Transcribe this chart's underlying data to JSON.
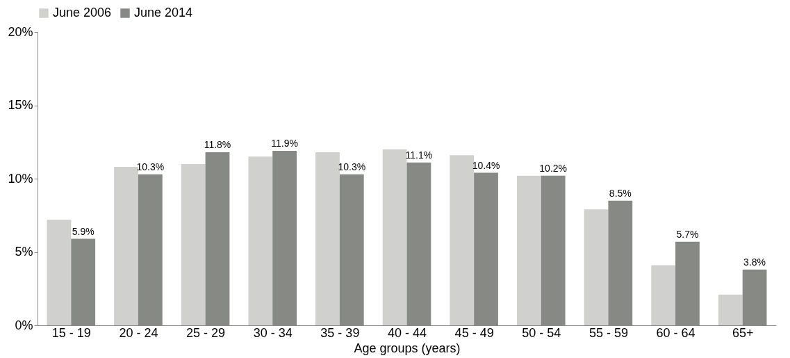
{
  "chart_data": {
    "type": "bar",
    "xlabel": "Age groups (years)",
    "categories": [
      "15 - 19",
      "20 - 24",
      "25 - 29",
      "30 - 34",
      "35 - 39",
      "40 - 44",
      "45 - 49",
      "50 - 54",
      "55 - 59",
      "60 - 64",
      "65+"
    ],
    "series": [
      {
        "name": "June 2006",
        "color": "#d0d1cf",
        "values": [
          7.2,
          10.8,
          11.0,
          11.5,
          11.8,
          12.0,
          11.6,
          10.2,
          7.9,
          4.1,
          2.1
        ]
      },
      {
        "name": "June 2014",
        "color": "#878985",
        "values": [
          5.9,
          10.3,
          11.8,
          11.9,
          10.3,
          11.1,
          10.4,
          10.2,
          8.5,
          5.7,
          3.8
        ],
        "value_labels": [
          "5.9%",
          "10.3%",
          "11.8%",
          "11.9%",
          "10.3%",
          "11.1%",
          "10.4%",
          "10.2%",
          "8.5%",
          "5.7%",
          "3.8%"
        ]
      }
    ],
    "ylim": [
      0,
      20
    ],
    "yticks": [
      {
        "value": 0,
        "label": "0%"
      },
      {
        "value": 5,
        "label": "5%"
      },
      {
        "value": 10,
        "label": "10%"
      },
      {
        "value": 15,
        "label": "15%"
      },
      {
        "value": 20,
        "label": "20%"
      }
    ],
    "grid": false,
    "legend": "top"
  }
}
